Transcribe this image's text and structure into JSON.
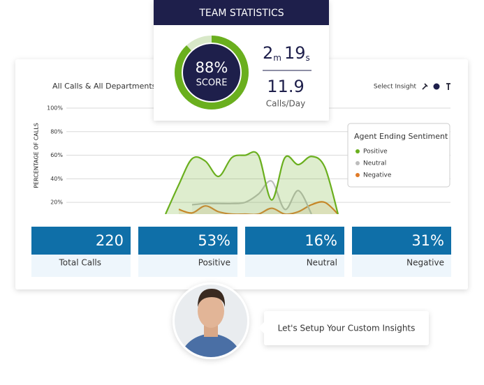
{
  "header": {
    "title": "TEAM STATISTICS"
  },
  "score": {
    "value": 88,
    "label": "88%"
  },
  "score_caption": "SCORE",
  "talk_time": {
    "minutes": 2,
    "minutes_unit": "m",
    "seconds": 19,
    "seconds_unit": "s"
  },
  "calls_per_day": {
    "value": "11.9",
    "caption": "Calls/Day"
  },
  "toolbar": {
    "label": "Select Insight"
  },
  "chart_data": {
    "type": "line",
    "title": "All Calls & All Departments",
    "y_label": "PERCENTAGE OF CALLS",
    "categories": [
      null,
      null,
      null,
      null,
      null,
      null,
      null,
      null,
      null,
      null,
      null,
      null,
      null,
      null
    ],
    "ylim": [
      10,
      100
    ],
    "yticks": [
      {
        "value": 20,
        "label": "20%"
      },
      {
        "value": 40,
        "label": "40%"
      },
      {
        "value": 60,
        "label": "60%"
      },
      {
        "value": 80,
        "label": "80%"
      },
      {
        "value": 100,
        "label": "100%"
      }
    ],
    "grid": true,
    "legend_title": "Agent Ending Sentiment",
    "legend": "right",
    "series": [
      {
        "name": "Positive",
        "color": "#6aaf1e",
        "values": [
          10,
          35,
          57,
          55,
          42,
          58,
          60,
          60,
          22,
          58,
          52,
          59,
          50,
          10
        ]
      },
      {
        "name": "Neutral",
        "color": "#bdbdbd",
        "values": [
          null,
          null,
          18,
          19,
          19,
          19,
          20,
          27,
          38,
          14,
          30,
          10,
          null,
          null
        ]
      },
      {
        "name": "Negative",
        "color": "#e07b28",
        "values": [
          null,
          14,
          11,
          17,
          12,
          10,
          10,
          10,
          15,
          10,
          12,
          18,
          20,
          10
        ]
      }
    ]
  },
  "stats": [
    {
      "value": "220",
      "label": "Total Calls"
    },
    {
      "value": "53%",
      "label": "Positive"
    },
    {
      "value": "16%",
      "label": "Neutral"
    },
    {
      "value": "31%",
      "label": "Negative"
    }
  ],
  "prompt": "Let's Setup Your Custom Insights"
}
